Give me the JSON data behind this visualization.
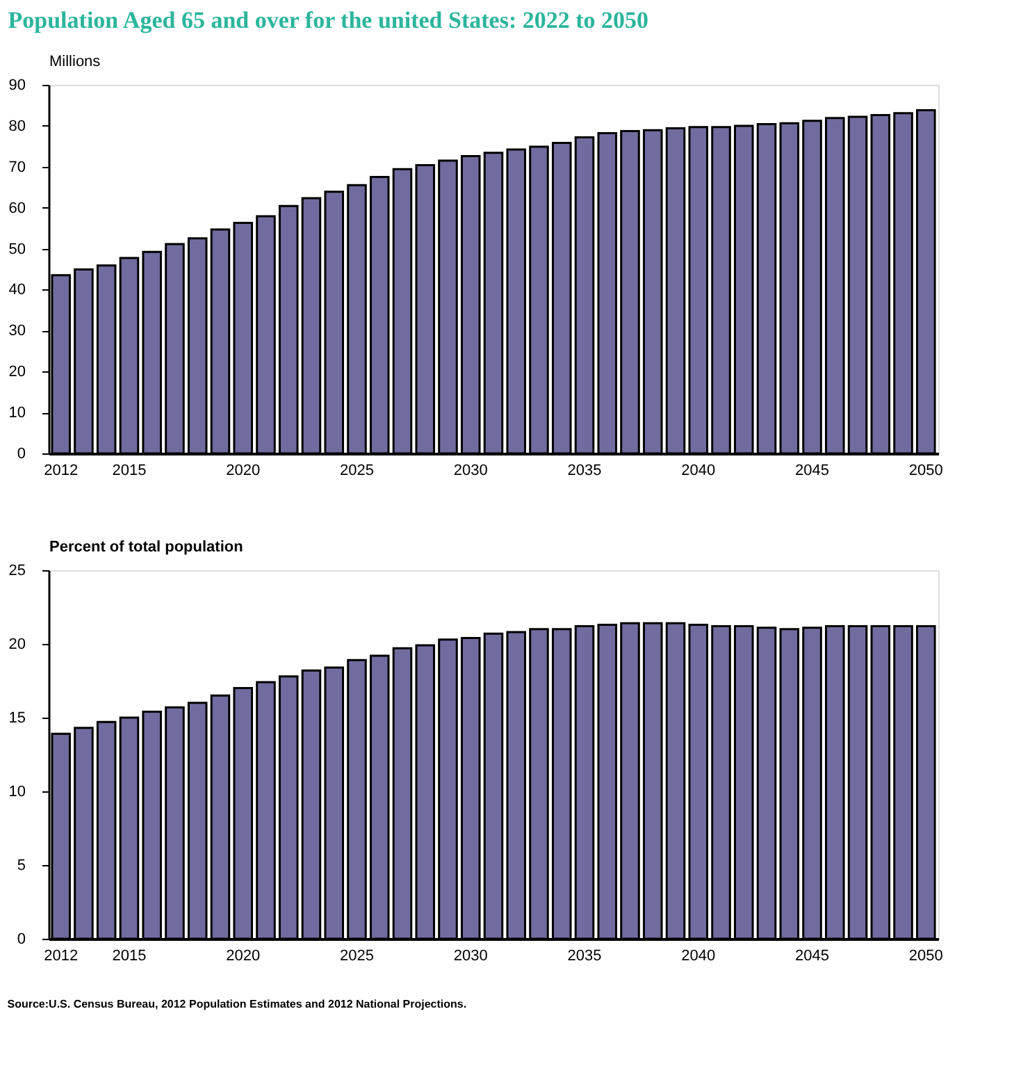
{
  "chart_data": [
    {
      "type": "bar",
      "title": "Population Aged 65 and over for the united States: 2022 to 2050",
      "ylabel": "Millions",
      "categories": [
        "2012",
        null,
        null,
        "2015",
        null,
        null,
        null,
        null,
        "2020",
        null,
        null,
        null,
        null,
        "2025",
        null,
        null,
        null,
        null,
        "2030",
        null,
        null,
        null,
        null,
        "2035",
        null,
        null,
        null,
        null,
        "2040",
        null,
        null,
        null,
        null,
        "2045",
        null,
        null,
        null,
        null,
        "2050"
      ],
      "values": [
        43.5,
        44.9,
        45.9,
        47.7,
        49.2,
        51.1,
        52.5,
        54.7,
        56.3,
        57.9,
        60.4,
        62.3,
        63.9,
        65.5,
        67.5,
        69.4,
        70.4,
        71.5,
        72.6,
        73.4,
        74.2,
        74.9,
        75.8,
        77.2,
        78.2,
        78.7,
        78.9,
        79.4,
        79.7,
        79.7,
        80.0,
        80.4,
        80.6,
        81.2,
        81.9,
        82.2,
        82.6,
        83.1,
        83.8
      ],
      "color": "#716c9f",
      "ylim": [
        0,
        90
      ],
      "yticks": [
        0,
        10,
        20,
        30,
        40,
        50,
        60,
        70,
        80,
        90
      ],
      "grid": false
    },
    {
      "type": "bar",
      "ylabel": "Percent of total population",
      "categories": [
        "2012",
        null,
        null,
        "2015",
        null,
        null,
        null,
        null,
        "2020",
        null,
        null,
        null,
        null,
        "2025",
        null,
        null,
        null,
        null,
        "2030",
        null,
        null,
        null,
        null,
        "2035",
        null,
        null,
        null,
        null,
        "2040",
        null,
        null,
        null,
        null,
        "2045",
        null,
        null,
        null,
        null,
        "2050"
      ],
      "values": [
        13.9,
        14.3,
        14.7,
        15.0,
        15.4,
        15.7,
        16.0,
        16.5,
        17.0,
        17.4,
        17.8,
        18.2,
        18.4,
        18.9,
        19.2,
        19.7,
        19.9,
        20.3,
        20.4,
        20.7,
        20.8,
        21.0,
        21.0,
        21.2,
        21.3,
        21.4,
        21.4,
        21.4,
        21.3,
        21.2,
        21.2,
        21.1,
        21.0,
        21.1,
        21.2,
        21.2,
        21.2,
        21.2,
        21.2
      ],
      "color": "#716c9f",
      "ylim": [
        0,
        25
      ],
      "yticks": [
        0,
        5,
        10,
        15,
        20,
        25
      ],
      "grid": false,
      "annotations": [
        "Source:U.S. Census Bureau, 2012 Population Estimates and 2012 National Projections."
      ]
    }
  ]
}
